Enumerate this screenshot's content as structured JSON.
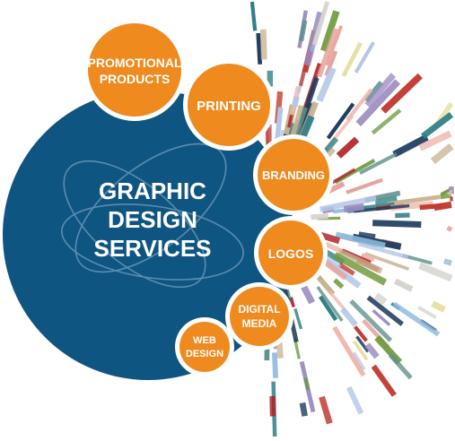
{
  "main": {
    "title_lines": [
      "GRAPHIC",
      "DESIGN",
      "SERVICES"
    ]
  },
  "services": [
    {
      "id": "promotional-products",
      "lines": [
        "PROMOTIONAL",
        "PRODUCTS"
      ]
    },
    {
      "id": "printing",
      "lines": [
        "PRINTING"
      ]
    },
    {
      "id": "branding",
      "lines": [
        "BRANDING"
      ]
    },
    {
      "id": "logos",
      "lines": [
        "LOGOS"
      ]
    },
    {
      "id": "digital-media",
      "lines": [
        "DIGITAL",
        "MEDIA"
      ]
    },
    {
      "id": "web-design",
      "lines": [
        "WEB",
        "DESIGN"
      ]
    }
  ],
  "colors": {
    "main_circle": "#0f5581",
    "main_circle_swirl": "#5a8cb0",
    "bubble_fill": "#ef8a1f",
    "bubble_ring": "#ffffff",
    "text": "#ffffff",
    "burst_palette": [
      "#e7a29a",
      "#f0b7ad",
      "#b11f24",
      "#2f7f86",
      "#8cb9de",
      "#9b8cc2",
      "#6f9a3d",
      "#b4c7e7",
      "#e3df9a",
      "#c8b28e",
      "#1f3d5e",
      "#d6d3cf",
      "#5b8f8a",
      "#c23b33"
    ]
  }
}
